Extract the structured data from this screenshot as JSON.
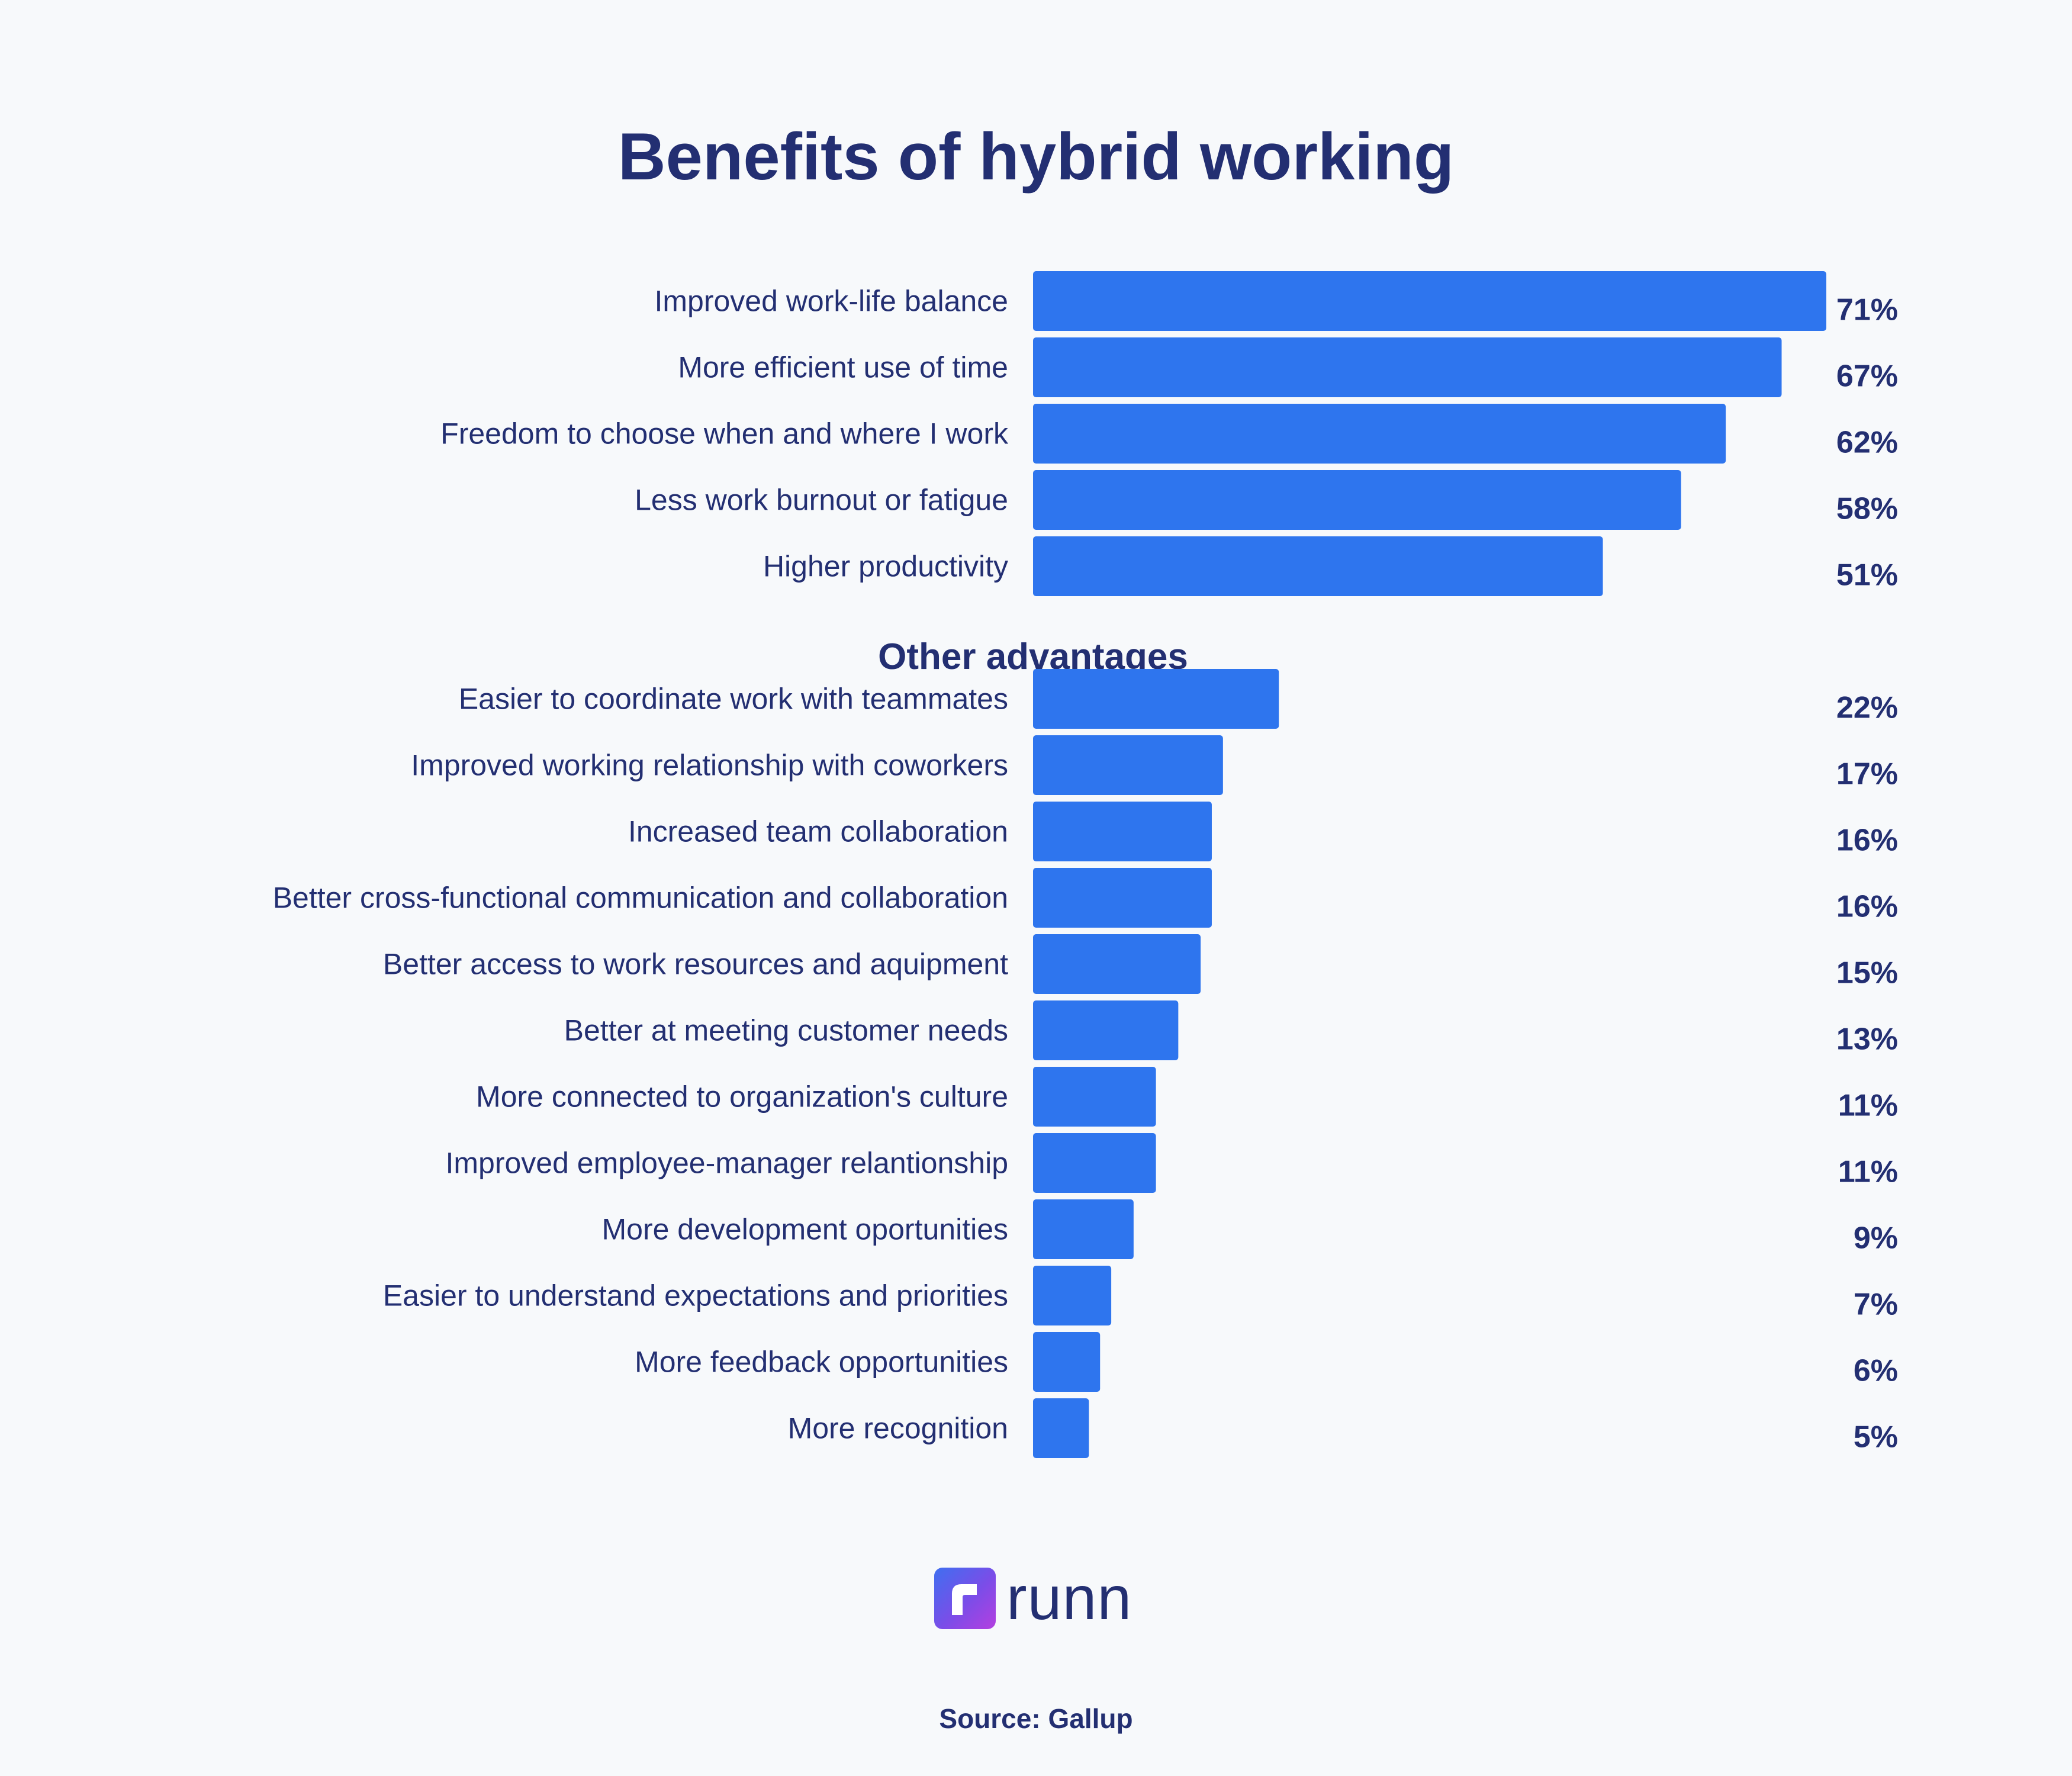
{
  "title": "Benefits of hybrid working",
  "section_label": "Other advantages",
  "logo": {
    "text": "runn",
    "icon": "runn-logo-icon"
  },
  "source": "Source: Gallup",
  "colors": {
    "bar": "#2e75ee",
    "text": "#232f72",
    "background": "#f7f9fb"
  },
  "chart_data": {
    "type": "bar",
    "orientation": "horizontal",
    "title": "Benefits of hybrid working",
    "value_suffix": "%",
    "groups": [
      {
        "name": "",
        "categories": [
          "Improved work-life balance",
          "More efficient use of time",
          "Freedom to choose when and where I work",
          "Less work burnout or fatigue",
          "Higher productivity"
        ],
        "values": [
          71,
          67,
          62,
          58,
          51
        ]
      },
      {
        "name": "Other advantages",
        "categories": [
          "Easier to coordinate work with teammates",
          "Improved working relationship with coworkers",
          "Increased team collaboration",
          "Better cross-functional communication and collaboration",
          "Better access to work resources and aquipment",
          "Better at meeting customer needs",
          "More connected to organization's culture",
          "Improved employee-manager relantionship",
          "More development oportunities",
          "Easier to understand expectations and priorities",
          "More feedback opportunities",
          "More recognition"
        ],
        "values": [
          22,
          17,
          16,
          16,
          15,
          13,
          11,
          11,
          9,
          7,
          6,
          5
        ]
      }
    ],
    "xlim": [
      0,
      71
    ],
    "grid": false,
    "legend": "none"
  }
}
